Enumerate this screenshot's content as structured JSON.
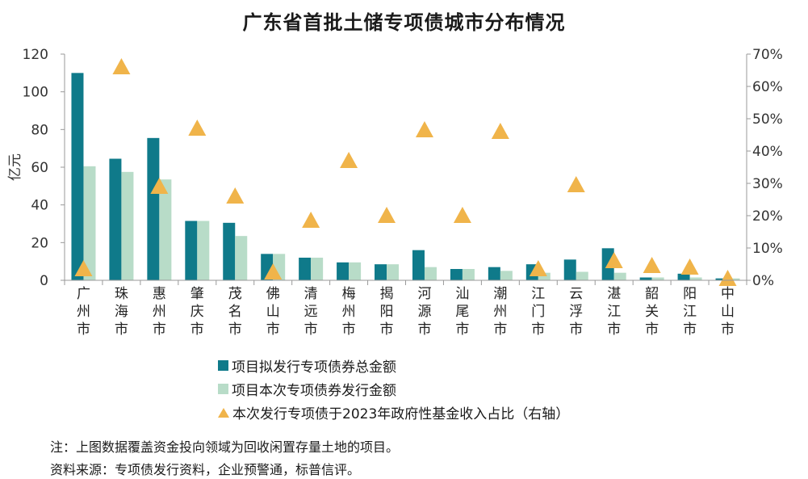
{
  "chart_data": {
    "type": "bar",
    "title": "广东省首批土储专项债城市分布情况",
    "ylabel": "亿元",
    "ylim": [
      0,
      120
    ],
    "y_ticks": [
      "0",
      "20",
      "40",
      "60",
      "80",
      "100",
      "120"
    ],
    "y2lim": [
      0,
      70
    ],
    "y2_ticks": [
      "0%",
      "10%",
      "20%",
      "30%",
      "40%",
      "50%",
      "60%",
      "70%"
    ],
    "categories": [
      "广州市",
      "珠海市",
      "惠州市",
      "肇庆市",
      "茂名市",
      "佛山市",
      "清远市",
      "梅州市",
      "揭阳市",
      "河源市",
      "汕尾市",
      "潮州市",
      "江门市",
      "云浮市",
      "湛江市",
      "韶关市",
      "阳江市",
      "中山市"
    ],
    "series": [
      {
        "name": "项目拟发行专项债券总金额",
        "type": "bar",
        "axis": "left",
        "color": "#0f7a8a",
        "values": [
          110,
          64.5,
          75.5,
          31.5,
          30.5,
          14,
          12,
          9.5,
          8.5,
          16,
          6,
          7,
          8.5,
          11,
          17,
          1.5,
          3.5,
          1
        ]
      },
      {
        "name": "项目本次专项债券发行金额",
        "type": "bar",
        "axis": "left",
        "color": "#b8dcc8",
        "values": [
          60.5,
          57.5,
          53.5,
          31.5,
          23.5,
          14,
          12,
          9.5,
          8.5,
          7,
          6,
          5,
          4,
          4.5,
          4,
          1.5,
          1.5,
          1
        ]
      },
      {
        "name": "本次发行专项债于2023年政府性基金收入占比（右轴）",
        "type": "scatter",
        "axis": "right",
        "color": "#f0b44a",
        "values": [
          3.5,
          66,
          29,
          47,
          26,
          2.5,
          18.5,
          37,
          20,
          46.5,
          20,
          46,
          3.5,
          29.5,
          6,
          4.5,
          4,
          0.5
        ]
      }
    ],
    "grid": false,
    "legend_position": "bottom"
  },
  "footnotes": {
    "note": "注：上图数据覆盖资金投向领域为回收闲置存量土地的项目。",
    "source": "资料来源：专项债发行资料，企业预警通，标普信评。"
  }
}
